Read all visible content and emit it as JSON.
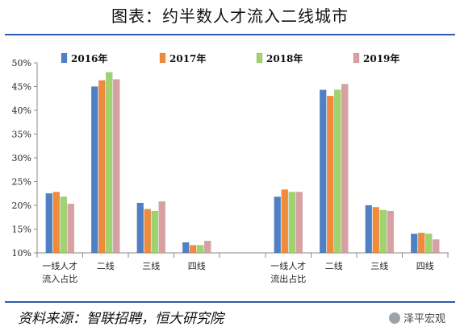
{
  "title": "图表：约半数人才流入二线城市",
  "source": "资料来源：智联招聘，恒大研究院",
  "watermark": "泽平宏观",
  "chart_data": {
    "type": "bar",
    "ylim": [
      0.1,
      0.5
    ],
    "yticks": [
      "10%",
      "15%",
      "20%",
      "25%",
      "30%",
      "35%",
      "40%",
      "45%",
      "50%"
    ],
    "legend_position": "top",
    "groups": [
      {
        "label": [
          "一线人才",
          "流入占比"
        ],
        "categories": [
          "一线",
          "二线",
          "三线",
          "四线"
        ]
      },
      {
        "label": [
          "一线人才",
          "流出占比"
        ],
        "categories": [
          "一线",
          "二线",
          "三线",
          "四线"
        ]
      }
    ],
    "series": [
      {
        "name": "2016年",
        "color": "#4f7fc4",
        "values": [
          0.225,
          0.45,
          0.205,
          0.122,
          0.218,
          0.443,
          0.2,
          0.14
        ]
      },
      {
        "name": "2017年",
        "color": "#f08a3c",
        "values": [
          0.228,
          0.463,
          0.192,
          0.116,
          0.233,
          0.43,
          0.196,
          0.142
        ]
      },
      {
        "name": "2018年",
        "color": "#9fd46c",
        "values": [
          0.218,
          0.48,
          0.188,
          0.116,
          0.228,
          0.443,
          0.19,
          0.14
        ]
      },
      {
        "name": "2019年",
        "color": "#d9a0a4",
        "values": [
          0.203,
          0.465,
          0.208,
          0.125,
          0.228,
          0.455,
          0.188,
          0.128
        ]
      }
    ]
  }
}
